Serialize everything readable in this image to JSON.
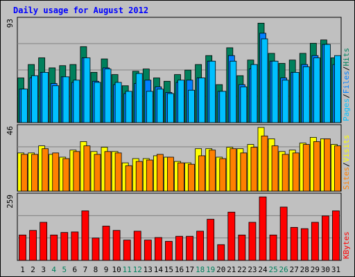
{
  "title": "Daily usage for August 2012",
  "colors": {
    "frame_bg": "#c0c0c0",
    "plot_bg": "#c0c0c0",
    "title": "#0000ff",
    "hits": "#00805c",
    "files": "#0080ff",
    "pages": "#00c0ff",
    "visits": "#ffff00",
    "sites": "#ff8000",
    "kbytes": "#ff0000",
    "weekend_day": "#00805c",
    "weekday": "#000000"
  },
  "chart_data": [
    {
      "type": "bar",
      "panel": "hits-files-pages",
      "side_label_parts": [
        "Pages",
        "/",
        "Files",
        "/",
        "Hits"
      ],
      "ymax_label": "93",
      "ylim": [
        0,
        93
      ],
      "categories": [
        "1",
        "2",
        "3",
        "4",
        "5",
        "6",
        "7",
        "8",
        "9",
        "10",
        "11",
        "12",
        "13",
        "14",
        "15",
        "16",
        "17",
        "18",
        "19",
        "20",
        "21",
        "22",
        "23",
        "24",
        "25",
        "26",
        "27",
        "28",
        "29",
        "30",
        "31"
      ],
      "series": [
        {
          "name": "Hits",
          "values": [
            40,
            52,
            58,
            49,
            51,
            52,
            68,
            45,
            57,
            43,
            33,
            46,
            48,
            40,
            37,
            43,
            47,
            52,
            60,
            34,
            67,
            42,
            56,
            89,
            62,
            53,
            56,
            62,
            71,
            74,
            58
          ]
        },
        {
          "name": "Files",
          "values": [
            30,
            40,
            45,
            35,
            41,
            36,
            58,
            37,
            49,
            34,
            26,
            35,
            38,
            32,
            27,
            36,
            38,
            40,
            55,
            28,
            60,
            34,
            48,
            80,
            55,
            40,
            45,
            52,
            60,
            70,
            52
          ]
        },
        {
          "name": "Pages",
          "values": [
            30,
            42,
            45,
            33,
            41,
            38,
            58,
            36,
            48,
            36,
            28,
            44,
            28,
            30,
            26,
            38,
            29,
            40,
            55,
            28,
            55,
            32,
            52,
            75,
            55,
            38,
            45,
            50,
            58,
            70,
            60
          ]
        }
      ]
    },
    {
      "type": "bar",
      "panel": "visits-sites",
      "side_label_parts": [
        "Sites",
        "/",
        "Visits"
      ],
      "ymax_label": "46",
      "ylim": [
        0,
        46
      ],
      "categories": [
        "1",
        "2",
        "3",
        "4",
        "5",
        "6",
        "7",
        "8",
        "9",
        "10",
        "11",
        "12",
        "13",
        "14",
        "15",
        "16",
        "17",
        "18",
        "19",
        "20",
        "21",
        "22",
        "23",
        "24",
        "25",
        "26",
        "27",
        "28",
        "29",
        "30",
        "31"
      ],
      "series": [
        {
          "name": "Visits",
          "values": [
            27,
            27,
            32,
            26,
            24,
            29,
            35,
            28,
            31,
            28,
            20,
            23,
            23,
            25,
            24,
            21,
            20,
            30,
            30,
            24,
            31,
            30,
            33,
            45,
            37,
            28,
            29,
            34,
            38,
            37,
            33
          ]
        },
        {
          "name": "Sites",
          "values": [
            26,
            26,
            30,
            27,
            23,
            28,
            32,
            26,
            28,
            27,
            18,
            21,
            22,
            26,
            24,
            20,
            19,
            25,
            29,
            23,
            30,
            27,
            31,
            39,
            32,
            26,
            27,
            33,
            35,
            37,
            32
          ]
        }
      ]
    },
    {
      "type": "bar",
      "panel": "kbytes",
      "side_label_parts": [
        "KBytes"
      ],
      "ymax_label": "259",
      "ylim": [
        0,
        259
      ],
      "categories": [
        "1",
        "2",
        "3",
        "4",
        "5",
        "6",
        "7",
        "8",
        "9",
        "10",
        "11",
        "12",
        "13",
        "14",
        "15",
        "16",
        "17",
        "18",
        "19",
        "20",
        "21",
        "22",
        "23",
        "24",
        "25",
        "26",
        "27",
        "28",
        "29",
        "30",
        "31"
      ],
      "series": [
        {
          "name": "KBytes",
          "values": [
            100,
            118,
            150,
            100,
            110,
            112,
            195,
            88,
            135,
            118,
            80,
            115,
            80,
            90,
            75,
            95,
            95,
            115,
            162,
            62,
            190,
            100,
            150,
            250,
            100,
            210,
            130,
            125,
            150,
            175,
            195
          ]
        }
      ]
    }
  ],
  "x_labels": [
    "1",
    "2",
    "3",
    "4",
    "5",
    "6",
    "7",
    "8",
    "9",
    "10",
    "11",
    "12",
    "13",
    "14",
    "15",
    "16",
    "17",
    "18",
    "19",
    "20",
    "21",
    "22",
    "23",
    "24",
    "25",
    "26",
    "27",
    "28",
    "29",
    "30",
    "31"
  ],
  "weekend_days": [
    "4",
    "5",
    "11",
    "12",
    "18",
    "19",
    "25",
    "26"
  ]
}
